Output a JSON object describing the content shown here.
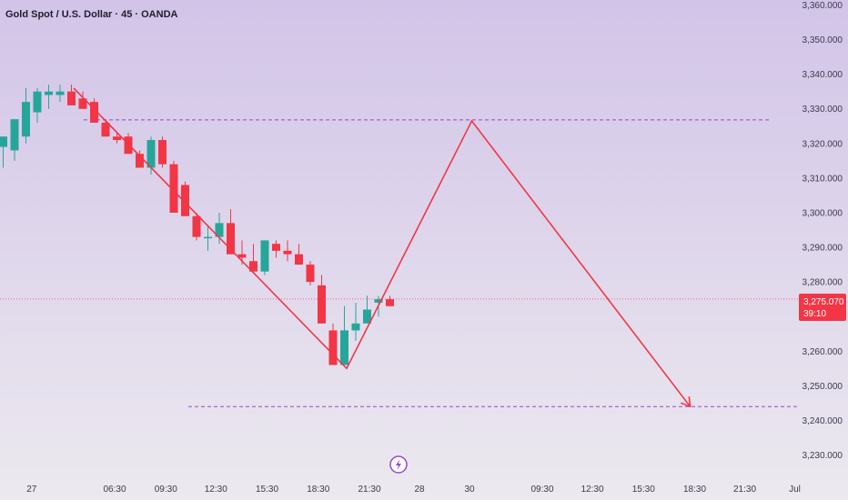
{
  "chart_data": {
    "type": "candlestick",
    "title": "Gold Spot / U.S. Dollar · 45 · OANDA",
    "ylim": [
      3224,
      3362
    ],
    "y_ticks": [
      "3,230.000",
      "3,240.000",
      "3,250.000",
      "3,260.000",
      "3,270.000",
      "3,280.000",
      "3,290.000",
      "3,300.000",
      "3,310.000",
      "3,320.000",
      "3,330.000",
      "3,340.000",
      "3,350.000",
      "3,360.000"
    ],
    "y_tick_values": [
      3230,
      3240,
      3250,
      3260,
      3270,
      3280,
      3290,
      3300,
      3310,
      3320,
      3330,
      3340,
      3350,
      3360
    ],
    "x_ticks": [
      "27",
      "06:30",
      "09:30",
      "12:30",
      "15:30",
      "18:30",
      "21:30",
      "28",
      "30",
      "09:30",
      "12:30",
      "15:30",
      "18:30",
      "21:30",
      "Jul"
    ],
    "x_tick_index": [
      2.5,
      9.8,
      14.3,
      18.7,
      23.2,
      27.7,
      32.2,
      36.6,
      41.0,
      47.4,
      51.8,
      56.3,
      60.8,
      65.2,
      69.6
    ],
    "candles": [
      {
        "o": 3319,
        "h": 3322,
        "l": 3313,
        "c": 3322
      },
      {
        "o": 3318,
        "h": 3327,
        "l": 3315,
        "c": 3327
      },
      {
        "o": 3322,
        "h": 3336,
        "l": 3320,
        "c": 3332
      },
      {
        "o": 3329,
        "h": 3336,
        "l": 3326,
        "c": 3335
      },
      {
        "o": 3334,
        "h": 3337,
        "l": 3330,
        "c": 3335
      },
      {
        "o": 3334,
        "h": 3337,
        "l": 3332,
        "c": 3335
      },
      {
        "o": 3335,
        "h": 3337,
        "l": 3332,
        "c": 3331
      },
      {
        "o": 3333,
        "h": 3335,
        "l": 3330,
        "c": 3330
      },
      {
        "o": 3332,
        "h": 3333,
        "l": 3326,
        "c": 3326
      },
      {
        "o": 3326,
        "h": 3327,
        "l": 3322,
        "c": 3322
      },
      {
        "o": 3322,
        "h": 3323,
        "l": 3320,
        "c": 3321
      },
      {
        "o": 3322,
        "h": 3323,
        "l": 3317,
        "c": 3317
      },
      {
        "o": 3317,
        "h": 3318,
        "l": 3313,
        "c": 3313
      },
      {
        "o": 3313,
        "h": 3322,
        "l": 3311,
        "c": 3321
      },
      {
        "o": 3321,
        "h": 3322,
        "l": 3313,
        "c": 3314
      },
      {
        "o": 3314,
        "h": 3315,
        "l": 3300,
        "c": 3300
      },
      {
        "o": 3308,
        "h": 3309,
        "l": 3299,
        "c": 3299
      },
      {
        "o": 3299,
        "h": 3300,
        "l": 3292,
        "c": 3293
      },
      {
        "o": 3293,
        "h": 3296,
        "l": 3289,
        "c": 3293
      },
      {
        "o": 3293,
        "h": 3300,
        "l": 3291,
        "c": 3297
      },
      {
        "o": 3297,
        "h": 3301,
        "l": 3288,
        "c": 3288
      },
      {
        "o": 3288,
        "h": 3292,
        "l": 3285,
        "c": 3287
      },
      {
        "o": 3286,
        "h": 3291,
        "l": 3283,
        "c": 3283
      },
      {
        "o": 3283,
        "h": 3292,
        "l": 3282,
        "c": 3292
      },
      {
        "o": 3291,
        "h": 3292,
        "l": 3287,
        "c": 3289
      },
      {
        "o": 3289,
        "h": 3292,
        "l": 3286,
        "c": 3288
      },
      {
        "o": 3288,
        "h": 3291,
        "l": 3285,
        "c": 3285
      },
      {
        "o": 3285,
        "h": 3286,
        "l": 3279,
        "c": 3280
      },
      {
        "o": 3279,
        "h": 3282,
        "l": 3268,
        "c": 3268
      },
      {
        "o": 3266,
        "h": 3268,
        "l": 3256,
        "c": 3256
      },
      {
        "o": 3256,
        "h": 3273,
        "l": 3256,
        "c": 3266
      },
      {
        "o": 3266,
        "h": 3274,
        "l": 3263,
        "c": 3268
      },
      {
        "o": 3268,
        "h": 3276,
        "l": 3268,
        "c": 3272
      },
      {
        "o": 3274,
        "h": 3276,
        "l": 3270,
        "c": 3275
      },
      {
        "o": 3275,
        "h": 3276,
        "l": 3273,
        "c": 3273
      }
    ],
    "last_price": "3,275.070",
    "countdown": "39:10",
    "resistance": 3326.8,
    "support": 3244,
    "zigzag": [
      {
        "i": 6.2,
        "p": 3336
      },
      {
        "i": 30.2,
        "p": 3255
      },
      {
        "i": 41.2,
        "p": 3326.5
      },
      {
        "i": 60.4,
        "p": 3244
      }
    ],
    "colors": {
      "up": "#26a69a",
      "down": "#f23645",
      "projection": "#f23645",
      "level": "#9c46c9",
      "bg_top": "#d2c4e8",
      "bg_bottom": "#ece9ef"
    },
    "grid": false,
    "legend": "none"
  },
  "ui": {
    "watermark_icon": "lightning-bolt-icon"
  }
}
